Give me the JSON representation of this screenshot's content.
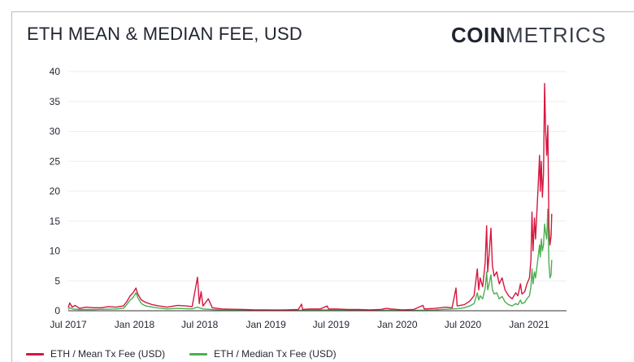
{
  "header": {
    "title": "ETH MEAN & MEDIAN FEE, USD",
    "logo_bold": "COIN",
    "logo_light": "METRICS"
  },
  "colors": {
    "mean": "#d6173f",
    "median": "#4caf50",
    "grid": "#eeeeee",
    "axis": "#333333"
  },
  "chart_data": {
    "type": "line",
    "title": "ETH MEAN & MEDIAN FEE, USD",
    "xlabel": "",
    "ylabel": "",
    "ylim": [
      0,
      40
    ],
    "yticks": [
      0,
      5,
      10,
      15,
      20,
      25,
      30,
      35,
      40
    ],
    "xlim": [
      "2017-07-01",
      "2021-04-15"
    ],
    "xticks": [
      {
        "date": "2017-07-01",
        "label": "Jul 2017"
      },
      {
        "date": "2018-01-01",
        "label": "Jan 2018"
      },
      {
        "date": "2018-07-01",
        "label": "Jul 2018"
      },
      {
        "date": "2019-01-01",
        "label": "Jan 2019"
      },
      {
        "date": "2019-07-01",
        "label": "Jul 2019"
      },
      {
        "date": "2020-01-01",
        "label": "Jan 2020"
      },
      {
        "date": "2020-07-01",
        "label": "Jul 2020"
      },
      {
        "date": "2021-01-01",
        "label": "Jan 2021"
      }
    ],
    "grid": true,
    "legend_position": "bottom-left",
    "series": [
      {
        "name": "ETH / Mean Tx Fee (USD)",
        "points": [
          [
            "2017-07-01",
            0.5
          ],
          [
            "2017-07-05",
            1.3
          ],
          [
            "2017-07-12",
            0.6
          ],
          [
            "2017-07-20",
            0.9
          ],
          [
            "2017-08-01",
            0.4
          ],
          [
            "2017-08-20",
            0.6
          ],
          [
            "2017-09-10",
            0.5
          ],
          [
            "2017-10-01",
            0.5
          ],
          [
            "2017-10-20",
            0.7
          ],
          [
            "2017-11-10",
            0.6
          ],
          [
            "2017-12-01",
            0.8
          ],
          [
            "2017-12-10",
            1.5
          ],
          [
            "2017-12-20",
            2.5
          ],
          [
            "2017-12-28",
            3.0
          ],
          [
            "2018-01-05",
            3.8
          ],
          [
            "2018-01-10",
            2.8
          ],
          [
            "2018-01-20",
            1.8
          ],
          [
            "2018-02-01",
            1.4
          ],
          [
            "2018-02-20",
            1.0
          ],
          [
            "2018-03-10",
            0.8
          ],
          [
            "2018-04-01",
            0.6
          ],
          [
            "2018-05-01",
            0.9
          ],
          [
            "2018-05-25",
            0.8
          ],
          [
            "2018-06-10",
            0.7
          ],
          [
            "2018-06-25",
            5.6
          ],
          [
            "2018-06-30",
            1.2
          ],
          [
            "2018-07-05",
            3.2
          ],
          [
            "2018-07-10",
            0.8
          ],
          [
            "2018-07-25",
            2.0
          ],
          [
            "2018-08-05",
            0.5
          ],
          [
            "2018-09-01",
            0.3
          ],
          [
            "2018-10-01",
            0.25
          ],
          [
            "2018-11-01",
            0.2
          ],
          [
            "2018-12-01",
            0.15
          ],
          [
            "2019-01-01",
            0.15
          ],
          [
            "2019-02-01",
            0.12
          ],
          [
            "2019-03-01",
            0.15
          ],
          [
            "2019-04-01",
            0.2
          ],
          [
            "2019-04-10",
            1.1
          ],
          [
            "2019-04-13",
            0.2
          ],
          [
            "2019-05-01",
            0.3
          ],
          [
            "2019-06-01",
            0.3
          ],
          [
            "2019-06-20",
            0.8
          ],
          [
            "2019-06-24",
            0.3
          ],
          [
            "2019-07-15",
            0.3
          ],
          [
            "2019-08-15",
            0.2
          ],
          [
            "2019-09-15",
            0.2
          ],
          [
            "2019-10-15",
            0.15
          ],
          [
            "2019-11-15",
            0.2
          ],
          [
            "2019-12-01",
            0.4
          ],
          [
            "2019-12-15",
            0.3
          ],
          [
            "2020-01-15",
            0.15
          ],
          [
            "2020-02-15",
            0.2
          ],
          [
            "2020-03-12",
            0.9
          ],
          [
            "2020-03-16",
            0.3
          ],
          [
            "2020-04-15",
            0.4
          ],
          [
            "2020-05-15",
            0.6
          ],
          [
            "2020-06-01",
            0.5
          ],
          [
            "2020-06-12",
            3.8
          ],
          [
            "2020-06-15",
            0.8
          ],
          [
            "2020-07-05",
            1.0
          ],
          [
            "2020-07-20",
            1.6
          ],
          [
            "2020-08-01",
            2.5
          ],
          [
            "2020-08-10",
            7.0
          ],
          [
            "2020-08-14",
            3.5
          ],
          [
            "2020-08-18",
            5.5
          ],
          [
            "2020-08-25",
            4.0
          ],
          [
            "2020-09-01",
            8.0
          ],
          [
            "2020-09-05",
            14.2
          ],
          [
            "2020-09-08",
            6.5
          ],
          [
            "2020-09-12",
            9.5
          ],
          [
            "2020-09-17",
            13.8
          ],
          [
            "2020-09-21",
            7.5
          ],
          [
            "2020-09-26",
            5.8
          ],
          [
            "2020-10-03",
            6.5
          ],
          [
            "2020-10-10",
            4.5
          ],
          [
            "2020-10-18",
            5.5
          ],
          [
            "2020-10-26",
            3.5
          ],
          [
            "2020-11-05",
            2.5
          ],
          [
            "2020-11-15",
            2.0
          ],
          [
            "2020-11-25",
            3.0
          ],
          [
            "2020-12-01",
            2.5
          ],
          [
            "2020-12-08",
            4.5
          ],
          [
            "2020-12-12",
            2.8
          ],
          [
            "2020-12-20",
            3.2
          ],
          [
            "2020-12-26",
            4.5
          ],
          [
            "2021-01-02",
            5.5
          ],
          [
            "2021-01-06",
            8.5
          ],
          [
            "2021-01-09",
            16.5
          ],
          [
            "2021-01-12",
            10.0
          ],
          [
            "2021-01-16",
            15.5
          ],
          [
            "2021-01-19",
            12.0
          ],
          [
            "2021-01-23",
            17.0
          ],
          [
            "2021-01-27",
            22.0
          ],
          [
            "2021-01-30",
            26.0
          ],
          [
            "2021-02-01",
            20.0
          ],
          [
            "2021-02-04",
            25.0
          ],
          [
            "2021-02-07",
            19.0
          ],
          [
            "2021-02-10",
            23.0
          ],
          [
            "2021-02-13",
            38.0
          ],
          [
            "2021-02-16",
            30.0
          ],
          [
            "2021-02-19",
            26.0
          ],
          [
            "2021-02-22",
            31.0
          ],
          [
            "2021-02-25",
            14.0
          ],
          [
            "2021-02-28",
            11.0
          ],
          [
            "2021-03-03",
            12.5
          ],
          [
            "2021-03-05",
            16.2
          ]
        ]
      },
      {
        "name": "ETH / Median Tx Fee (USD)",
        "points": [
          [
            "2017-07-01",
            0.2
          ],
          [
            "2017-07-05",
            0.5
          ],
          [
            "2017-07-12",
            0.3
          ],
          [
            "2017-08-01",
            0.2
          ],
          [
            "2017-09-10",
            0.2
          ],
          [
            "2017-10-01",
            0.25
          ],
          [
            "2017-11-10",
            0.3
          ],
          [
            "2017-12-01",
            0.4
          ],
          [
            "2017-12-10",
            1.0
          ],
          [
            "2017-12-20",
            1.8
          ],
          [
            "2017-12-28",
            2.2
          ],
          [
            "2018-01-05",
            3.0
          ],
          [
            "2018-01-10",
            2.2
          ],
          [
            "2018-01-20",
            1.2
          ],
          [
            "2018-02-01",
            0.8
          ],
          [
            "2018-02-20",
            0.6
          ],
          [
            "2018-03-10",
            0.45
          ],
          [
            "2018-04-01",
            0.3
          ],
          [
            "2018-05-01",
            0.4
          ],
          [
            "2018-06-10",
            0.3
          ],
          [
            "2018-06-25",
            0.6
          ],
          [
            "2018-07-10",
            0.3
          ],
          [
            "2018-08-05",
            0.2
          ],
          [
            "2018-09-01",
            0.12
          ],
          [
            "2018-10-01",
            0.1
          ],
          [
            "2018-11-01",
            0.08
          ],
          [
            "2018-12-01",
            0.06
          ],
          [
            "2019-01-01",
            0.06
          ],
          [
            "2019-02-01",
            0.05
          ],
          [
            "2019-03-01",
            0.06
          ],
          [
            "2019-04-01",
            0.08
          ],
          [
            "2019-05-01",
            0.12
          ],
          [
            "2019-06-01",
            0.15
          ],
          [
            "2019-07-15",
            0.15
          ],
          [
            "2019-08-15",
            0.1
          ],
          [
            "2019-09-15",
            0.1
          ],
          [
            "2019-10-15",
            0.08
          ],
          [
            "2019-11-15",
            0.1
          ],
          [
            "2019-12-15",
            0.1
          ],
          [
            "2020-01-15",
            0.06
          ],
          [
            "2020-02-15",
            0.08
          ],
          [
            "2020-03-15",
            0.1
          ],
          [
            "2020-04-15",
            0.15
          ],
          [
            "2020-05-15",
            0.25
          ],
          [
            "2020-06-01",
            0.3
          ],
          [
            "2020-06-15",
            0.35
          ],
          [
            "2020-07-05",
            0.5
          ],
          [
            "2020-07-20",
            0.8
          ],
          [
            "2020-08-01",
            1.2
          ],
          [
            "2020-08-10",
            3.0
          ],
          [
            "2020-08-14",
            1.8
          ],
          [
            "2020-08-18",
            2.5
          ],
          [
            "2020-08-25",
            2.0
          ],
          [
            "2020-09-01",
            3.8
          ],
          [
            "2020-09-05",
            6.5
          ],
          [
            "2020-09-08",
            3.5
          ],
          [
            "2020-09-12",
            4.5
          ],
          [
            "2020-09-17",
            6.0
          ],
          [
            "2020-09-21",
            3.5
          ],
          [
            "2020-09-26",
            2.8
          ],
          [
            "2020-10-03",
            3.0
          ],
          [
            "2020-10-10",
            2.0
          ],
          [
            "2020-10-18",
            2.4
          ],
          [
            "2020-10-26",
            1.5
          ],
          [
            "2020-11-05",
            1.0
          ],
          [
            "2020-11-15",
            0.8
          ],
          [
            "2020-11-25",
            1.2
          ],
          [
            "2020-12-01",
            1.0
          ],
          [
            "2020-12-08",
            1.8
          ],
          [
            "2020-12-12",
            1.2
          ],
          [
            "2020-12-20",
            1.4
          ],
          [
            "2020-12-26",
            2.0
          ],
          [
            "2021-01-02",
            2.5
          ],
          [
            "2021-01-06",
            4.0
          ],
          [
            "2021-01-09",
            7.0
          ],
          [
            "2021-01-12",
            4.5
          ],
          [
            "2021-01-16",
            6.5
          ],
          [
            "2021-01-19",
            5.5
          ],
          [
            "2021-01-23",
            7.5
          ],
          [
            "2021-01-27",
            9.5
          ],
          [
            "2021-01-30",
            11.0
          ],
          [
            "2021-02-01",
            9.0
          ],
          [
            "2021-02-04",
            12.0
          ],
          [
            "2021-02-07",
            10.0
          ],
          [
            "2021-02-10",
            11.0
          ],
          [
            "2021-02-13",
            14.5
          ],
          [
            "2021-02-16",
            13.0
          ],
          [
            "2021-02-19",
            12.0
          ],
          [
            "2021-02-22",
            17.0
          ],
          [
            "2021-02-25",
            8.0
          ],
          [
            "2021-02-28",
            5.5
          ],
          [
            "2021-03-03",
            6.0
          ],
          [
            "2021-03-05",
            8.5
          ]
        ]
      }
    ]
  }
}
